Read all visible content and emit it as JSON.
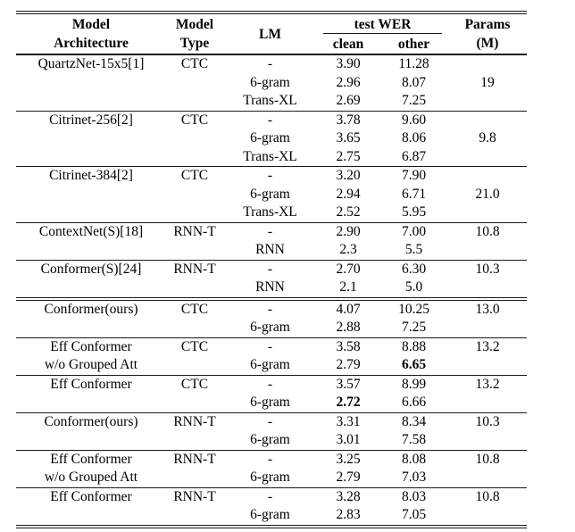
{
  "colors": {
    "background": "#ffffff",
    "text": "#000000",
    "rule": "#1a1a1a"
  },
  "table": {
    "header": {
      "arch": [
        "Model",
        "Architecture"
      ],
      "type": [
        "Model",
        "Type"
      ],
      "lm": "LM",
      "wer": "test WER",
      "clean": "clean",
      "other": "other",
      "params": [
        "Params",
        "(M)"
      ]
    },
    "sections": [
      {
        "groups": [
          {
            "rows": [
              {
                "arch": "QuartzNet-15x5[1]",
                "type": "CTC",
                "lm": "-",
                "clean": "3.90",
                "other": "11.28",
                "params": "",
                "bold": []
              },
              {
                "arch": "",
                "type": "",
                "lm": "6-gram",
                "clean": "2.96",
                "other": "8.07",
                "params": "19",
                "bold": []
              },
              {
                "arch": "",
                "type": "",
                "lm": "Trans-XL",
                "clean": "2.69",
                "other": "7.25",
                "params": "",
                "bold": []
              }
            ]
          },
          {
            "rows": [
              {
                "arch": "Citrinet-256[2]",
                "type": "CTC",
                "lm": "-",
                "clean": "3.78",
                "other": "9.60",
                "params": "",
                "bold": []
              },
              {
                "arch": "",
                "type": "",
                "lm": "6-gram",
                "clean": "3.65",
                "other": "8.06",
                "params": "9.8",
                "bold": []
              },
              {
                "arch": "",
                "type": "",
                "lm": "Trans-XL",
                "clean": "2.75",
                "other": "6.87",
                "params": "",
                "bold": []
              }
            ]
          },
          {
            "rows": [
              {
                "arch": "Citrinet-384[2]",
                "type": "CTC",
                "lm": "-",
                "clean": "3.20",
                "other": "7.90",
                "params": "",
                "bold": []
              },
              {
                "arch": "",
                "type": "",
                "lm": "6-gram",
                "clean": "2.94",
                "other": "6.71",
                "params": "21.0",
                "bold": []
              },
              {
                "arch": "",
                "type": "",
                "lm": "Trans-XL",
                "clean": "2.52",
                "other": "5.95",
                "params": "",
                "bold": []
              }
            ]
          },
          {
            "rows": [
              {
                "arch": "ContextNet(S)[18]",
                "type": "RNN-T",
                "lm": "-",
                "clean": "2.90",
                "other": "7.00",
                "params": "10.8",
                "bold": []
              },
              {
                "arch": "",
                "type": "",
                "lm": "RNN",
                "clean": "2.3",
                "other": "5.5",
                "params": "",
                "bold": []
              }
            ]
          },
          {
            "rows": [
              {
                "arch": "Conformer(S)[24]",
                "type": "RNN-T",
                "lm": "-",
                "clean": "2.70",
                "other": "6.30",
                "params": "10.3",
                "bold": []
              },
              {
                "arch": "",
                "type": "",
                "lm": "RNN",
                "clean": "2.1",
                "other": "5.0",
                "params": "",
                "bold": []
              }
            ]
          }
        ]
      },
      {
        "groups": [
          {
            "rows": [
              {
                "arch": "Conformer(ours)",
                "type": "CTC",
                "lm": "-",
                "clean": "4.07",
                "other": "10.25",
                "params": "13.0",
                "bold": []
              },
              {
                "arch": "",
                "type": "",
                "lm": "6-gram",
                "clean": "2.88",
                "other": "7.25",
                "params": "",
                "bold": []
              }
            ]
          },
          {
            "rows": [
              {
                "arch": "Eff Conformer",
                "type": "CTC",
                "lm": "-",
                "clean": "3.58",
                "other": "8.88",
                "params": "13.2",
                "bold": []
              },
              {
                "arch": "w/o Grouped Att",
                "type": "",
                "lm": "6-gram",
                "clean": "2.79",
                "other": "6.65",
                "params": "",
                "bold": [
                  "other"
                ]
              }
            ]
          },
          {
            "rows": [
              {
                "arch": "Eff Conformer",
                "type": "CTC",
                "lm": "-",
                "clean": "3.57",
                "other": "8.99",
                "params": "13.2",
                "bold": []
              },
              {
                "arch": "",
                "type": "",
                "lm": "6-gram",
                "clean": "2.72",
                "other": "6.66",
                "params": "",
                "bold": [
                  "clean"
                ]
              }
            ]
          },
          {
            "rows": [
              {
                "arch": "Conformer(ours)",
                "type": "RNN-T",
                "lm": "-",
                "clean": "3.31",
                "other": "8.34",
                "params": "10.3",
                "bold": []
              },
              {
                "arch": "",
                "type": "",
                "lm": "6-gram",
                "clean": "3.01",
                "other": "7.58",
                "params": "",
                "bold": []
              }
            ]
          },
          {
            "rows": [
              {
                "arch": "Eff Conformer",
                "type": "RNN-T",
                "lm": "-",
                "clean": "3.25",
                "other": "8.08",
                "params": "10.8",
                "bold": []
              },
              {
                "arch": "w/o Grouped Att",
                "type": "",
                "lm": "6-gram",
                "clean": "2.79",
                "other": "7.03",
                "params": "",
                "bold": []
              }
            ]
          },
          {
            "rows": [
              {
                "arch": "Eff Conformer",
                "type": "RNN-T",
                "lm": "-",
                "clean": "3.28",
                "other": "8.03",
                "params": "10.8",
                "bold": []
              },
              {
                "arch": "",
                "type": "",
                "lm": "6-gram",
                "clean": "2.83",
                "other": "7.05",
                "params": "",
                "bold": []
              }
            ]
          }
        ]
      }
    ]
  }
}
